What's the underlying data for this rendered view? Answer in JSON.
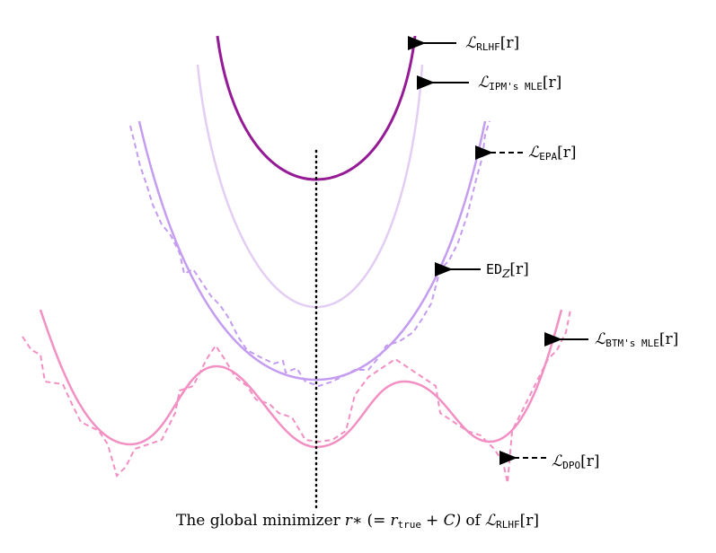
{
  "labels": [
    {
      "symbol": "ℒ",
      "subscript": "RLHF",
      "argument": "[r]"
    },
    {
      "symbol": "ℒ",
      "subscript": "IPM's MLE",
      "argument": "[r]"
    },
    {
      "symbol": "ℒ",
      "subscript": "EPA",
      "argument": "[r]"
    },
    {
      "symbol": "ED",
      "subscript": "Z",
      "argument": "[r]"
    },
    {
      "symbol": "ℒ",
      "subscript": "BTM's MLE",
      "argument": "[r]"
    },
    {
      "symbol": "ℒ",
      "subscript": "DPO",
      "argument": "[r]"
    }
  ],
  "caption": [
    "The global minimizer",
    "r∗",
    "(=",
    "r",
    "true",
    "+ C)",
    "of",
    "ℒ",
    "RLHF",
    "[r]"
  ]
}
